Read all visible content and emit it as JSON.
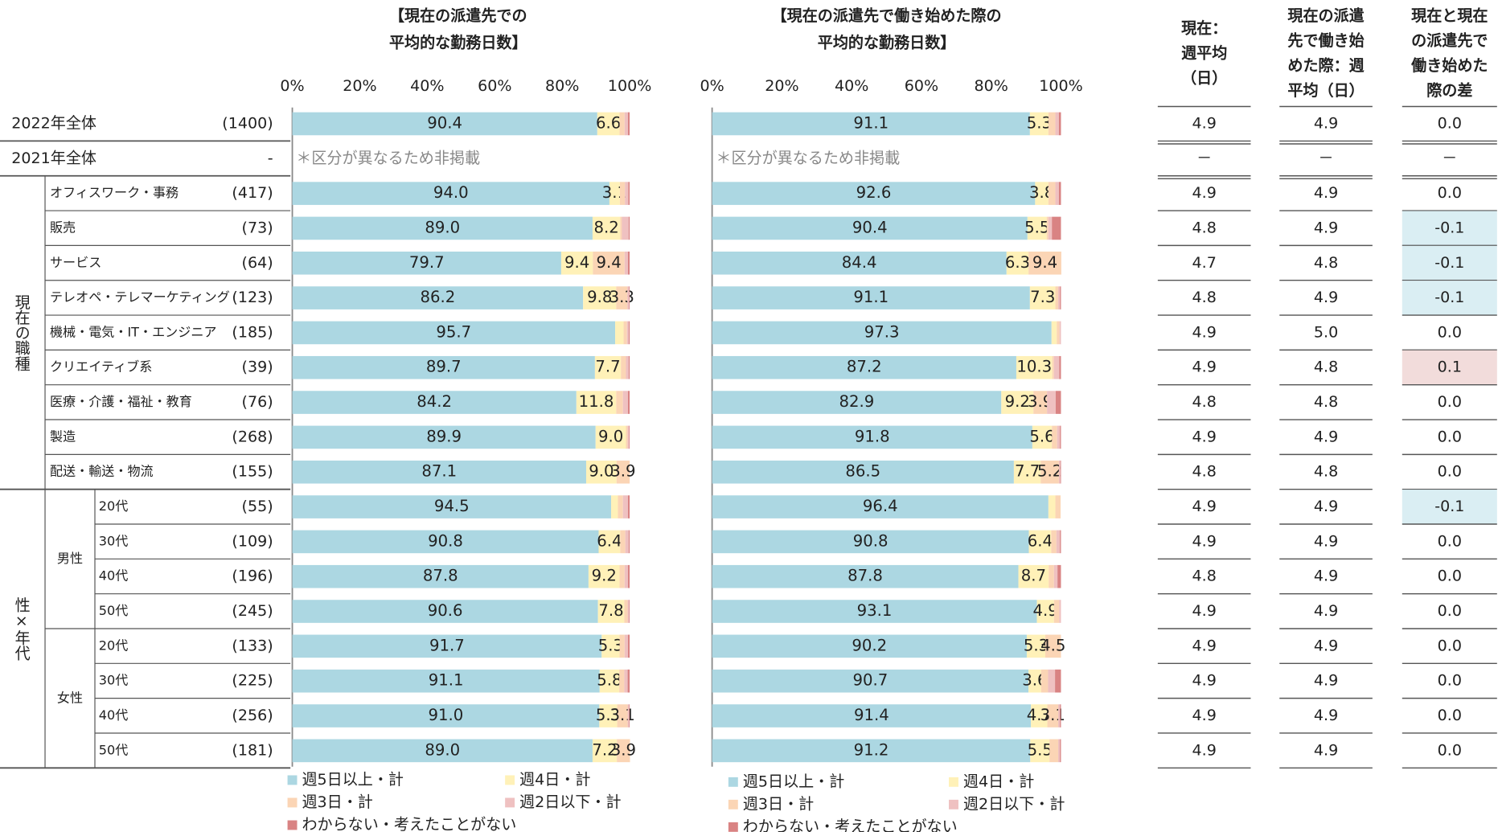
{
  "rows": [
    {
      "label": "2022年全体",
      "n": "(1400)"
    },
    {
      "label": "2021年全体",
      "n": "-"
    },
    {
      "group": "現在の職種",
      "rows": [
        {
          "label": "オフィスワーク・事務",
          "n": "(417)"
        },
        {
          "label": "販売",
          "n": "(73)"
        },
        {
          "label": "サービス",
          "n": "(64)"
        },
        {
          "label": "テレオペ・テレマーケティング",
          "n": "(123)"
        },
        {
          "label": "機械・電気・IT・エンジニア",
          "n": "(185)"
        },
        {
          "label": "クリエイティブ系",
          "n": "(39)"
        },
        {
          "label": "医療・介護・福祉・教育",
          "n": "(76)"
        },
        {
          "label": "製造",
          "n": "(268)"
        },
        {
          "label": "配送・輸送・物流",
          "n": "(155)"
        }
      ]
    },
    {
      "group": "性×年代",
      "subgroups": [
        {
          "label": "男性",
          "rows": [
            {
              "label": "20代",
              "n": "(55)"
            },
            {
              "label": "30代",
              "n": "(109)"
            },
            {
              "label": "40代",
              "n": "(196)"
            },
            {
              "label": "50代",
              "n": "(245)"
            }
          ]
        },
        {
          "label": "女性",
          "rows": [
            {
              "label": "20代",
              "n": "(133)"
            },
            {
              "label": "30代",
              "n": "(225)"
            },
            {
              "label": "40代",
              "n": "(256)"
            },
            {
              "label": "50代",
              "n": "(181)"
            }
          ]
        }
      ]
    }
  ],
  "chart_data": [
    {
      "type": "stacked_bar_h",
      "title": [
        "【現在の派遣先での",
        "平均的な勤務日数】"
      ],
      "note": "＊区分が異なるため非掲載",
      "xlim": [
        0,
        100
      ],
      "xticks": [
        {
          "value": 0,
          "label": "0%"
        },
        {
          "value": 20,
          "label": "20%"
        },
        {
          "value": 40,
          "label": "40%"
        },
        {
          "value": 60,
          "label": "60%"
        },
        {
          "value": 80,
          "label": "80%"
        },
        {
          "value": 100,
          "label": "100%"
        }
      ],
      "series": [
        {
          "name": "週5日以上・計",
          "color": "#acd7e2",
          "values": [
            90.4,
            null,
            94.0,
            89.0,
            79.7,
            86.2,
            95.7,
            89.7,
            84.2,
            89.9,
            87.1,
            94.5,
            90.8,
            87.8,
            90.6,
            91.7,
            91.1,
            91.0,
            89.0
          ],
          "value_labels": [
            "90.4",
            null,
            "94.0",
            "89.0",
            "79.7",
            "86.2",
            "95.7",
            "89.7",
            "84.2",
            "89.9",
            "87.1",
            "94.5",
            "90.8",
            "87.8",
            "90.6",
            "91.7",
            "91.1",
            "91.0",
            "89.0"
          ]
        },
        {
          "name": "週4日・計",
          "color": "#fff1b8",
          "values": [
            6.6,
            null,
            3.1,
            8.2,
            9.4,
            9.8,
            2.5,
            7.7,
            11.8,
            9.0,
            9.0,
            2.0,
            6.4,
            9.2,
            7.8,
            5.3,
            5.8,
            5.3,
            7.2
          ],
          "value_labels": [
            "6.6",
            null,
            "3.1",
            "8.2",
            "9.4",
            "9.8",
            null,
            "7.7",
            "11.8",
            "9.0",
            "9.0",
            null,
            "6.4",
            "9.2",
            "7.8",
            "5.3",
            "5.8",
            "5.3",
            "7.2"
          ]
        },
        {
          "name": "週3日・計",
          "color": "#fbd5b5",
          "values": [
            1.5,
            null,
            1.5,
            0.5,
            9.4,
            3.3,
            1.0,
            1.5,
            2.0,
            0.5,
            3.9,
            1.5,
            1.5,
            1.5,
            1.0,
            1.5,
            1.5,
            3.1,
            3.9
          ],
          "value_labels": [
            null,
            null,
            null,
            null,
            "9.4",
            "3.3",
            null,
            null,
            null,
            null,
            "3.9",
            null,
            null,
            null,
            null,
            null,
            null,
            "3.1",
            "3.9"
          ]
        },
        {
          "name": "週2日以下・計",
          "color": "#efc1c1",
          "values": [
            1.0,
            null,
            1.0,
            2.0,
            1.0,
            0.5,
            0.5,
            0.8,
            1.5,
            0.4,
            0,
            1.5,
            1.0,
            1.0,
            0.4,
            1.0,
            1.0,
            0.4,
            0
          ]
        },
        {
          "name": "わからない・考えたことがない",
          "color": "#d98383",
          "values": [
            0.5,
            null,
            0.4,
            0.3,
            0.5,
            0.2,
            0.3,
            0.3,
            0.5,
            0.2,
            0,
            0.5,
            0.3,
            0.5,
            0.2,
            0.5,
            0.6,
            0.2,
            0
          ]
        }
      ]
    },
    {
      "type": "stacked_bar_h",
      "title": [
        "【現在の派遣先で働き始めた際の",
        "平均的な勤務日数】"
      ],
      "note": "＊区分が異なるため非掲載",
      "xlim": [
        0,
        100
      ],
      "xticks": [
        {
          "value": 0,
          "label": "0%"
        },
        {
          "value": 20,
          "label": "20%"
        },
        {
          "value": 40,
          "label": "40%"
        },
        {
          "value": 60,
          "label": "60%"
        },
        {
          "value": 80,
          "label": "80%"
        },
        {
          "value": 100,
          "label": "100%"
        }
      ],
      "series": [
        {
          "name": "週5日以上・計",
          "color": "#acd7e2",
          "values": [
            91.1,
            null,
            92.6,
            90.4,
            84.4,
            91.1,
            97.3,
            87.2,
            82.9,
            91.8,
            86.5,
            96.4,
            90.8,
            87.8,
            93.1,
            90.2,
            90.7,
            91.4,
            91.2
          ],
          "value_labels": [
            "91.1",
            null,
            "92.6",
            "90.4",
            "84.4",
            "91.1",
            "97.3",
            "87.2",
            "82.9",
            "91.8",
            "86.5",
            "96.4",
            "90.8",
            "87.8",
            "93.1",
            "90.2",
            "90.7",
            "91.4",
            "91.2"
          ]
        },
        {
          "name": "週4日・計",
          "color": "#fff1b8",
          "values": [
            5.3,
            null,
            3.8,
            5.5,
            6.3,
            7.3,
            1.5,
            10.3,
            9.2,
            5.6,
            7.7,
            2.0,
            6.4,
            8.7,
            4.9,
            5.3,
            3.6,
            4.7,
            5.5
          ],
          "value_labels": [
            "5.3",
            null,
            "3.8",
            "5.5",
            "6.3",
            "7.3",
            null,
            "10.3",
            "9.2",
            "5.6",
            "7.7",
            null,
            "6.4",
            "8.7",
            "4.9",
            "5.3",
            "3.6",
            "4.7",
            "5.5"
          ]
        },
        {
          "name": "週3日・計",
          "color": "#fbd5b5",
          "values": [
            2.0,
            null,
            2.0,
            0.5,
            9.4,
            0.8,
            0.8,
            0.5,
            3.9,
            1.5,
            5.2,
            1.5,
            1.5,
            1.5,
            1.5,
            4.5,
            2.0,
            3.1,
            2.5
          ],
          "value_labels": [
            null,
            null,
            null,
            null,
            "9.4",
            null,
            null,
            null,
            "3.9",
            null,
            "5.2",
            null,
            null,
            null,
            null,
            "4.5",
            null,
            "3.1",
            null
          ]
        },
        {
          "name": "週2日以下・計",
          "color": "#efc1c1",
          "values": [
            1.0,
            null,
            1.0,
            1.0,
            0,
            0.5,
            0.4,
            1.5,
            2.5,
            0.8,
            0.4,
            0,
            1.0,
            1.0,
            0.5,
            0,
            2.0,
            0.5,
            0.5
          ]
        },
        {
          "name": "わからない・考えたことがない",
          "color": "#d98383",
          "values": [
            0.6,
            null,
            0.6,
            2.6,
            0,
            0.3,
            0,
            0.5,
            1.5,
            0.3,
            0.2,
            0,
            0.3,
            1.0,
            0,
            0,
            1.7,
            0.3,
            0.3
          ]
        }
      ]
    }
  ],
  "table": {
    "headers": [
      [
        "現在：",
        "週平均",
        "（日）"
      ],
      [
        "現在の派遣",
        "先で働き始",
        "めた際：週",
        "平均（日）"
      ],
      [
        "現在と現在",
        "の派遣先で",
        "働き始めた",
        "際の差"
      ]
    ],
    "rows": [
      [
        "4.9",
        "4.9",
        "0.0"
      ],
      [
        "－",
        "－",
        "－"
      ],
      [
        "4.9",
        "4.9",
        "0.0"
      ],
      [
        "4.8",
        "4.9",
        "-0.1"
      ],
      [
        "4.7",
        "4.8",
        "-0.1"
      ],
      [
        "4.8",
        "4.9",
        "-0.1"
      ],
      [
        "4.9",
        "5.0",
        "0.0"
      ],
      [
        "4.9",
        "4.8",
        "0.1"
      ],
      [
        "4.8",
        "4.8",
        "0.0"
      ],
      [
        "4.9",
        "4.9",
        "0.0"
      ],
      [
        "4.8",
        "4.8",
        "0.0"
      ],
      [
        "4.9",
        "4.9",
        "-0.1"
      ],
      [
        "4.9",
        "4.9",
        "0.0"
      ],
      [
        "4.8",
        "4.9",
        "0.0"
      ],
      [
        "4.9",
        "4.9",
        "0.0"
      ],
      [
        "4.9",
        "4.9",
        "0.0"
      ],
      [
        "4.9",
        "4.9",
        "0.0"
      ],
      [
        "4.9",
        "4.9",
        "0.0"
      ],
      [
        "4.9",
        "4.9",
        "0.0"
      ]
    ]
  }
}
